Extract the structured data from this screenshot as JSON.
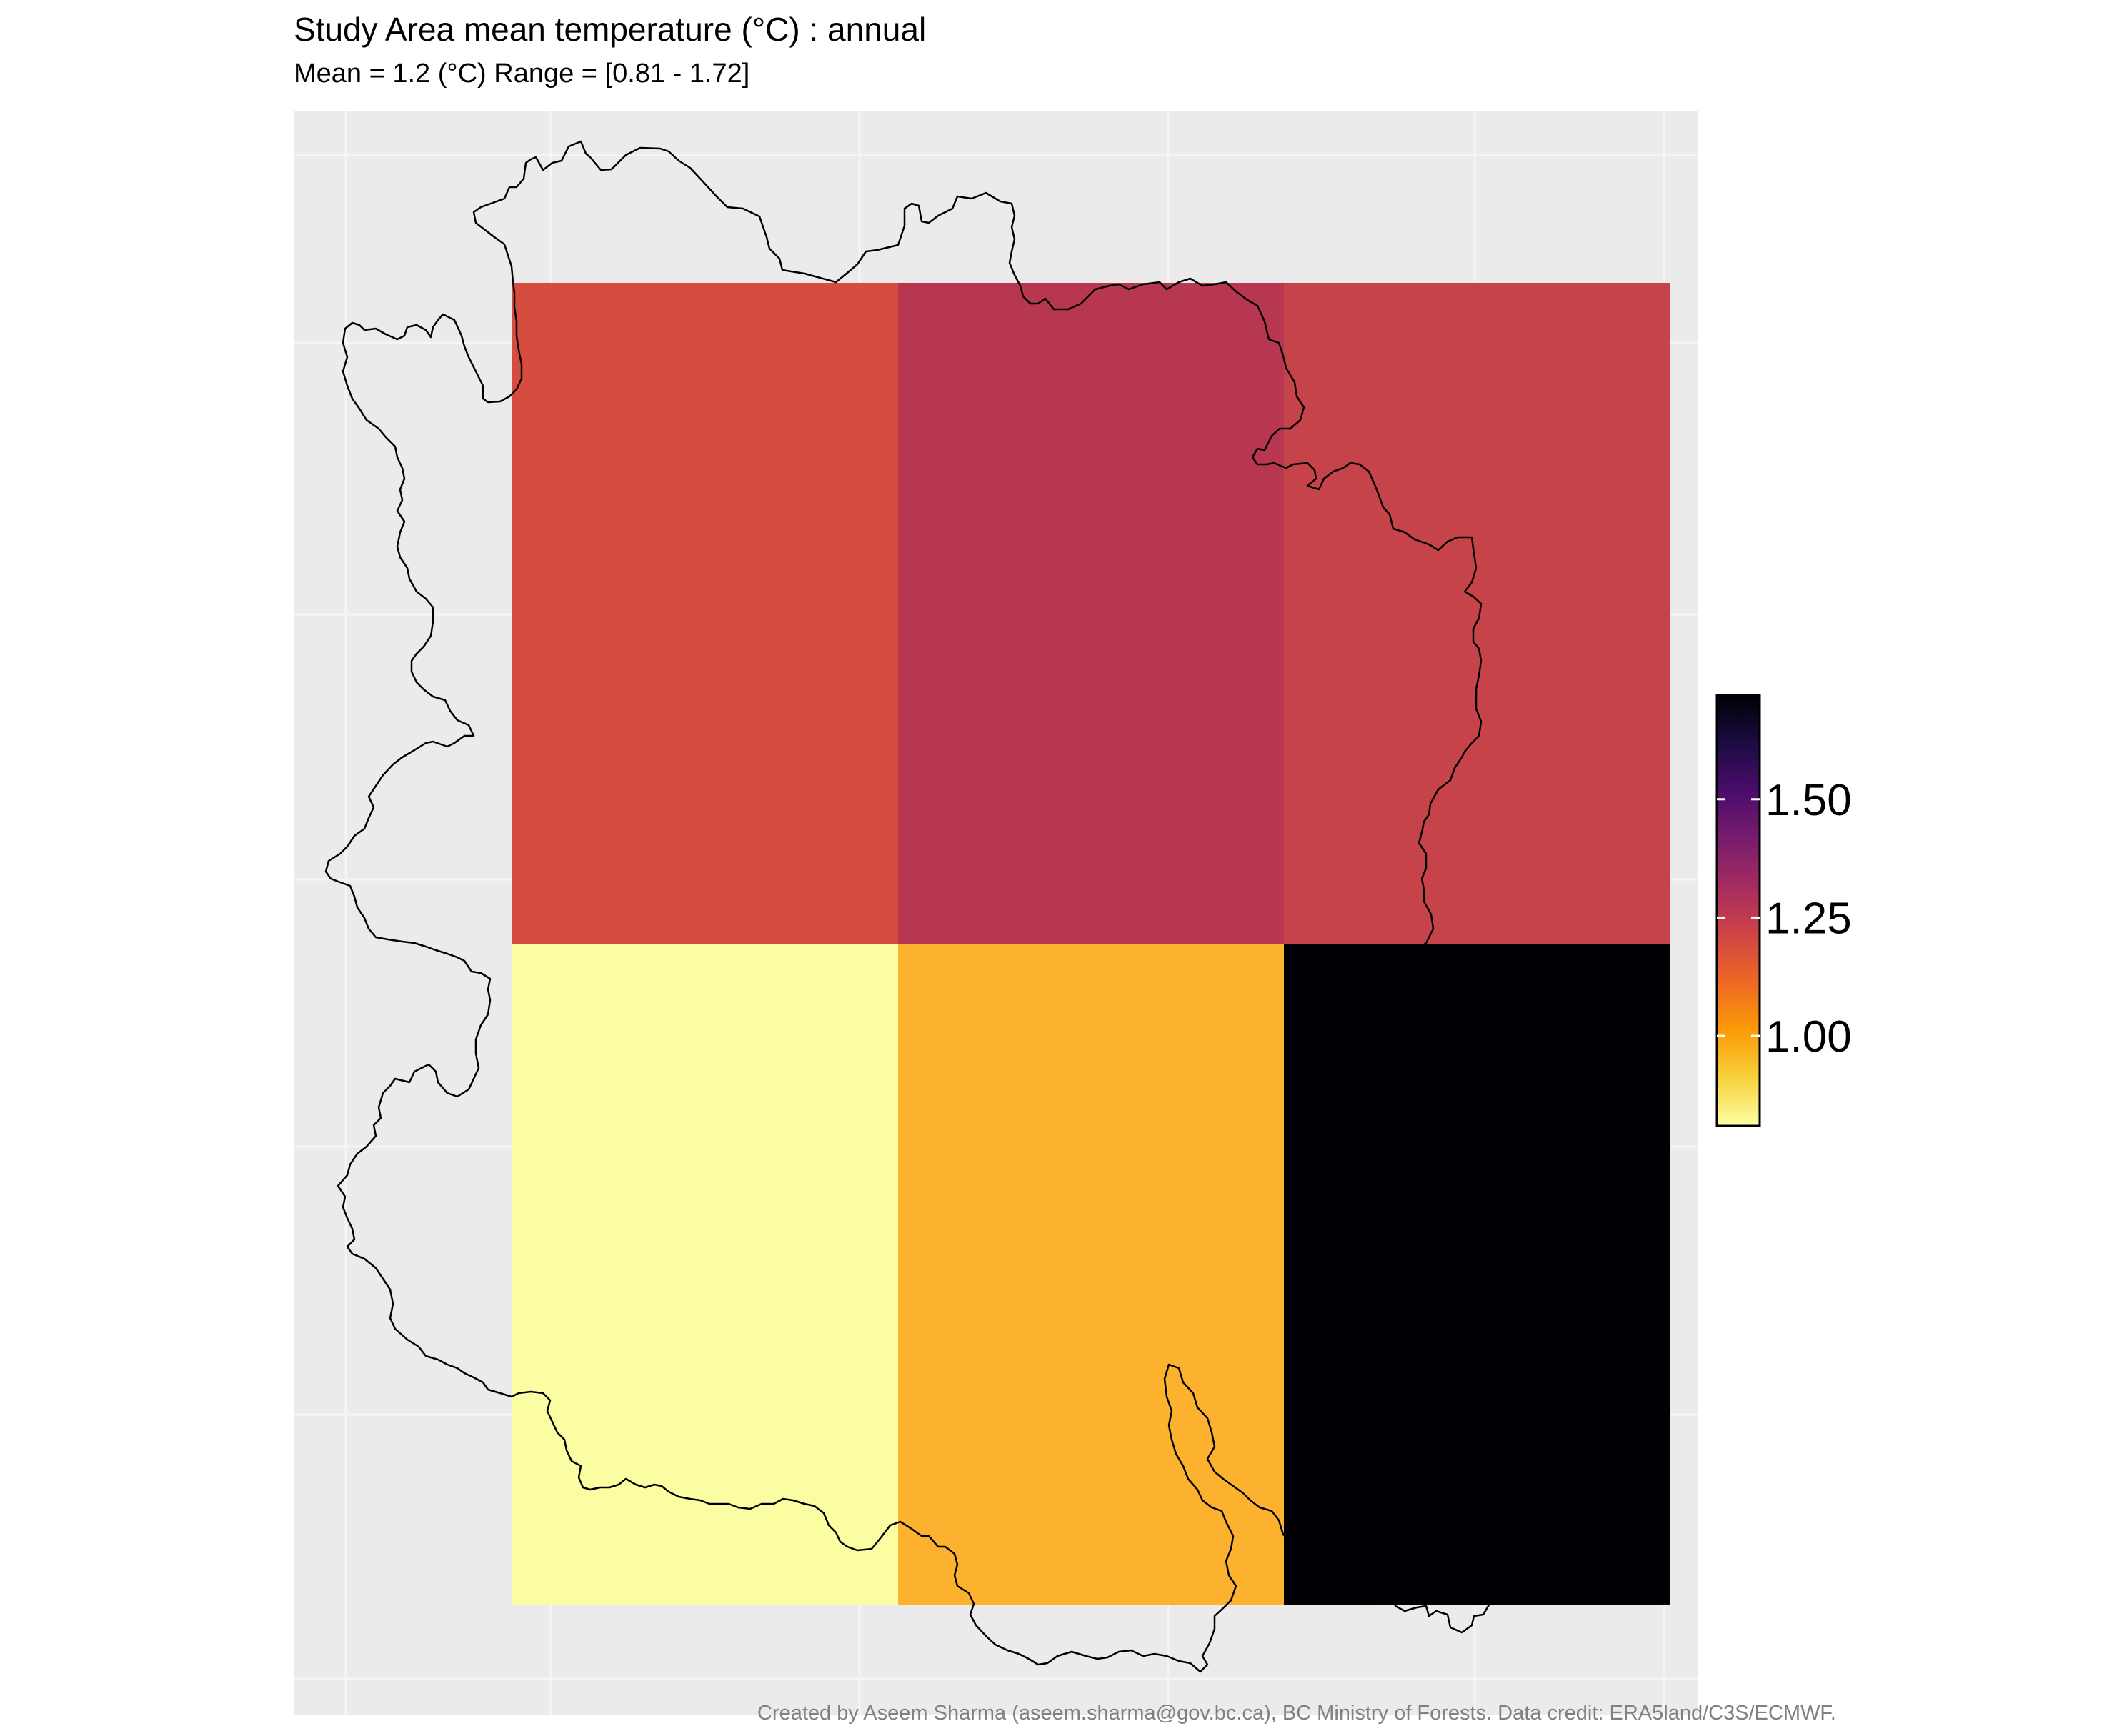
{
  "title": "Study Area mean temperature (°C) : annual",
  "subtitle": "Mean = 1.2 (°C)  Range = [0.81 - 1.72]",
  "caption": "Created by Aseem Sharma (aseem.sharma@gov.bc.ca), BC Ministry of Forests. Data credit: ERA5land/C3S/ECMWF.",
  "colors": {
    "panel_background": "#ebebeb",
    "panel_grid": "#f5f5f5",
    "outline": "#000000",
    "palette": "inferno (reversed)"
  },
  "chart_data": {
    "type": "heatmap",
    "grid": {
      "rows": 2,
      "cols": 3
    },
    "cells": [
      {
        "row": 0,
        "col": 0,
        "value": 1.19,
        "color": "#d64d3f"
      },
      {
        "row": 0,
        "col": 1,
        "value": 1.33,
        "color": "#b73751"
      },
      {
        "row": 0,
        "col": 2,
        "value": 1.27,
        "color": "#c54349"
      },
      {
        "row": 1,
        "col": 0,
        "value": 0.81,
        "color": "#fbfda2"
      },
      {
        "row": 1,
        "col": 1,
        "value": 1.01,
        "color": "#fcb12f"
      },
      {
        "row": 1,
        "col": 2,
        "value": 1.72,
        "color": "#010005"
      }
    ],
    "colorbar": {
      "min": 0.81,
      "max": 1.72,
      "ticks": [
        1.0,
        1.25,
        1.5
      ],
      "tick_labels": [
        "1.00",
        "1.25",
        "1.50"
      ],
      "stops": [
        "#fcffa4",
        "#f7d13d",
        "#fb9b06",
        "#ed6925",
        "#cf4446",
        "#a52c60",
        "#781c6d",
        "#4a0c6b",
        "#1b0c41",
        "#000004"
      ]
    },
    "grid_lines": true,
    "legend_placement": "right"
  }
}
